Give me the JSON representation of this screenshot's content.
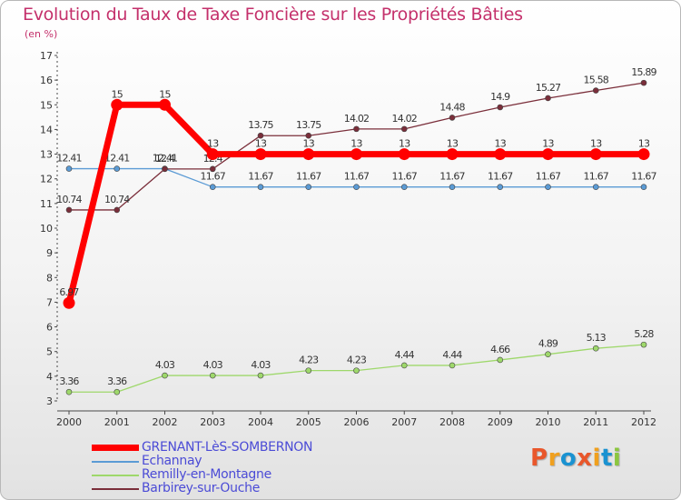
{
  "title": "Evolution du Taux de Taxe Foncière sur les Propriétés Bâties",
  "subtitle": "(en %)",
  "logo": {
    "text": "Proxiti",
    "colors": [
      "#e9572b",
      "#f0a01e",
      "#1a92d1",
      "#e9572b",
      "#f0a01e",
      "#1a92d1",
      "#8cc63f"
    ]
  },
  "chart_data": {
    "type": "line",
    "x": [
      "2000",
      "2001",
      "2002",
      "2003",
      "2004",
      "2005",
      "2006",
      "2007",
      "2008",
      "2009",
      "2010",
      "2011",
      "2012"
    ],
    "ylim": [
      3,
      17
    ],
    "yticks": [
      "3",
      "4",
      "5",
      "6",
      "7",
      "8",
      "9",
      "10",
      "11",
      "12",
      "13",
      "14",
      "15",
      "16",
      "17"
    ],
    "grid": false,
    "legend_position": "bottom-left",
    "series": [
      {
        "name": "Echannay",
        "color": "#5b9bd5",
        "values": [
          12.41,
          12.41,
          12.41,
          11.67,
          11.67,
          11.67,
          11.67,
          11.67,
          11.67,
          11.67,
          11.67,
          11.67,
          11.67
        ],
        "labels": [
          "12.41",
          "12.41",
          "12.41",
          "11.67",
          "11.67",
          "11.67",
          "11.67",
          "11.67",
          "11.67",
          "11.67",
          "11.67",
          "11.67",
          "11.67"
        ]
      },
      {
        "name": "Remilly-en-Montagne",
        "color": "#9ed86b",
        "values": [
          3.36,
          3.36,
          4.03,
          4.03,
          4.03,
          4.23,
          4.23,
          4.44,
          4.44,
          4.66,
          4.89,
          5.13,
          5.28
        ],
        "labels": [
          "3.36",
          "3.36",
          "4.03",
          "4.03",
          "4.03",
          "4.23",
          "4.23",
          "4.44",
          "4.44",
          "4.66",
          "4.89",
          "5.13",
          "5.28"
        ]
      },
      {
        "name": "Barbirey-sur-Ouche",
        "color": "#7a2e3a",
        "values": [
          10.74,
          10.74,
          12.4,
          12.4,
          13.75,
          13.75,
          14.02,
          14.02,
          14.48,
          14.9,
          15.27,
          15.58,
          15.89
        ],
        "labels": [
          "10.74",
          "10.74",
          "12.4",
          "12.4",
          "13.75",
          "13.75",
          "14.02",
          "14.02",
          "14.48",
          "14.9",
          "15.27",
          "15.58",
          "15.89"
        ]
      },
      {
        "name": "GRENANT-LèS-SOMBERNON",
        "color": "#ff0000",
        "values": [
          6.97,
          15,
          15,
          13,
          13,
          13,
          13,
          13,
          13,
          13,
          13,
          13,
          13
        ],
        "labels": [
          "6.97",
          "15",
          "15",
          "13",
          "13",
          "13",
          "13",
          "13",
          "13",
          "13",
          "13",
          "13",
          "13"
        ]
      }
    ]
  },
  "legend": [
    {
      "name": "GRENANT-LèS-SOMBERNON",
      "color": "#ff0000"
    },
    {
      "name": "Echannay",
      "color": "#5b9bd5"
    },
    {
      "name": "Remilly-en-Montagne",
      "color": "#9ed86b"
    },
    {
      "name": "Barbirey-sur-Ouche",
      "color": "#7a2e3a"
    }
  ]
}
